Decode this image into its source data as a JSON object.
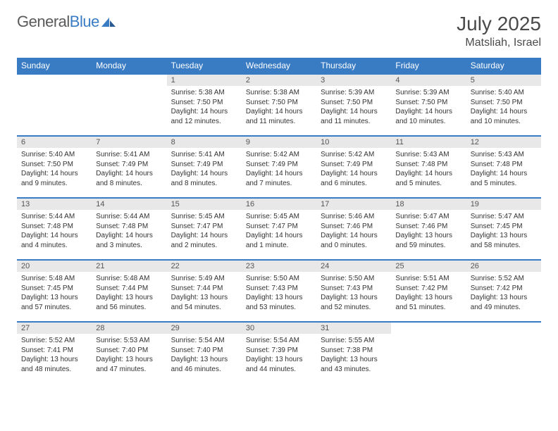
{
  "logo": {
    "left": "General",
    "right": "Blue"
  },
  "title": "July 2025",
  "location": "Matsliah, Israel",
  "colors": {
    "header_bg": "#3a7cc4",
    "header_text": "#ffffff",
    "daynum_bg": "#e8e8e8",
    "daynum_text": "#555555",
    "body_text": "#333333",
    "rule": "#3a7cc4",
    "page_bg": "#ffffff"
  },
  "weekdays": [
    "Sunday",
    "Monday",
    "Tuesday",
    "Wednesday",
    "Thursday",
    "Friday",
    "Saturday"
  ],
  "weeks": [
    [
      null,
      null,
      {
        "n": "1",
        "sr": "5:38 AM",
        "ss": "7:50 PM",
        "dl": "14 hours and 12 minutes."
      },
      {
        "n": "2",
        "sr": "5:38 AM",
        "ss": "7:50 PM",
        "dl": "14 hours and 11 minutes."
      },
      {
        "n": "3",
        "sr": "5:39 AM",
        "ss": "7:50 PM",
        "dl": "14 hours and 11 minutes."
      },
      {
        "n": "4",
        "sr": "5:39 AM",
        "ss": "7:50 PM",
        "dl": "14 hours and 10 minutes."
      },
      {
        "n": "5",
        "sr": "5:40 AM",
        "ss": "7:50 PM",
        "dl": "14 hours and 10 minutes."
      }
    ],
    [
      {
        "n": "6",
        "sr": "5:40 AM",
        "ss": "7:50 PM",
        "dl": "14 hours and 9 minutes."
      },
      {
        "n": "7",
        "sr": "5:41 AM",
        "ss": "7:49 PM",
        "dl": "14 hours and 8 minutes."
      },
      {
        "n": "8",
        "sr": "5:41 AM",
        "ss": "7:49 PM",
        "dl": "14 hours and 8 minutes."
      },
      {
        "n": "9",
        "sr": "5:42 AM",
        "ss": "7:49 PM",
        "dl": "14 hours and 7 minutes."
      },
      {
        "n": "10",
        "sr": "5:42 AM",
        "ss": "7:49 PM",
        "dl": "14 hours and 6 minutes."
      },
      {
        "n": "11",
        "sr": "5:43 AM",
        "ss": "7:48 PM",
        "dl": "14 hours and 5 minutes."
      },
      {
        "n": "12",
        "sr": "5:43 AM",
        "ss": "7:48 PM",
        "dl": "14 hours and 5 minutes."
      }
    ],
    [
      {
        "n": "13",
        "sr": "5:44 AM",
        "ss": "7:48 PM",
        "dl": "14 hours and 4 minutes."
      },
      {
        "n": "14",
        "sr": "5:44 AM",
        "ss": "7:48 PM",
        "dl": "14 hours and 3 minutes."
      },
      {
        "n": "15",
        "sr": "5:45 AM",
        "ss": "7:47 PM",
        "dl": "14 hours and 2 minutes."
      },
      {
        "n": "16",
        "sr": "5:45 AM",
        "ss": "7:47 PM",
        "dl": "14 hours and 1 minute."
      },
      {
        "n": "17",
        "sr": "5:46 AM",
        "ss": "7:46 PM",
        "dl": "14 hours and 0 minutes."
      },
      {
        "n": "18",
        "sr": "5:47 AM",
        "ss": "7:46 PM",
        "dl": "13 hours and 59 minutes."
      },
      {
        "n": "19",
        "sr": "5:47 AM",
        "ss": "7:45 PM",
        "dl": "13 hours and 58 minutes."
      }
    ],
    [
      {
        "n": "20",
        "sr": "5:48 AM",
        "ss": "7:45 PM",
        "dl": "13 hours and 57 minutes."
      },
      {
        "n": "21",
        "sr": "5:48 AM",
        "ss": "7:44 PM",
        "dl": "13 hours and 56 minutes."
      },
      {
        "n": "22",
        "sr": "5:49 AM",
        "ss": "7:44 PM",
        "dl": "13 hours and 54 minutes."
      },
      {
        "n": "23",
        "sr": "5:50 AM",
        "ss": "7:43 PM",
        "dl": "13 hours and 53 minutes."
      },
      {
        "n": "24",
        "sr": "5:50 AM",
        "ss": "7:43 PM",
        "dl": "13 hours and 52 minutes."
      },
      {
        "n": "25",
        "sr": "5:51 AM",
        "ss": "7:42 PM",
        "dl": "13 hours and 51 minutes."
      },
      {
        "n": "26",
        "sr": "5:52 AM",
        "ss": "7:42 PM",
        "dl": "13 hours and 49 minutes."
      }
    ],
    [
      {
        "n": "27",
        "sr": "5:52 AM",
        "ss": "7:41 PM",
        "dl": "13 hours and 48 minutes."
      },
      {
        "n": "28",
        "sr": "5:53 AM",
        "ss": "7:40 PM",
        "dl": "13 hours and 47 minutes."
      },
      {
        "n": "29",
        "sr": "5:54 AM",
        "ss": "7:40 PM",
        "dl": "13 hours and 46 minutes."
      },
      {
        "n": "30",
        "sr": "5:54 AM",
        "ss": "7:39 PM",
        "dl": "13 hours and 44 minutes."
      },
      {
        "n": "31",
        "sr": "5:55 AM",
        "ss": "7:38 PM",
        "dl": "13 hours and 43 minutes."
      },
      null,
      null
    ]
  ],
  "labels": {
    "sunrise": "Sunrise:",
    "sunset": "Sunset:",
    "daylight": "Daylight:"
  }
}
